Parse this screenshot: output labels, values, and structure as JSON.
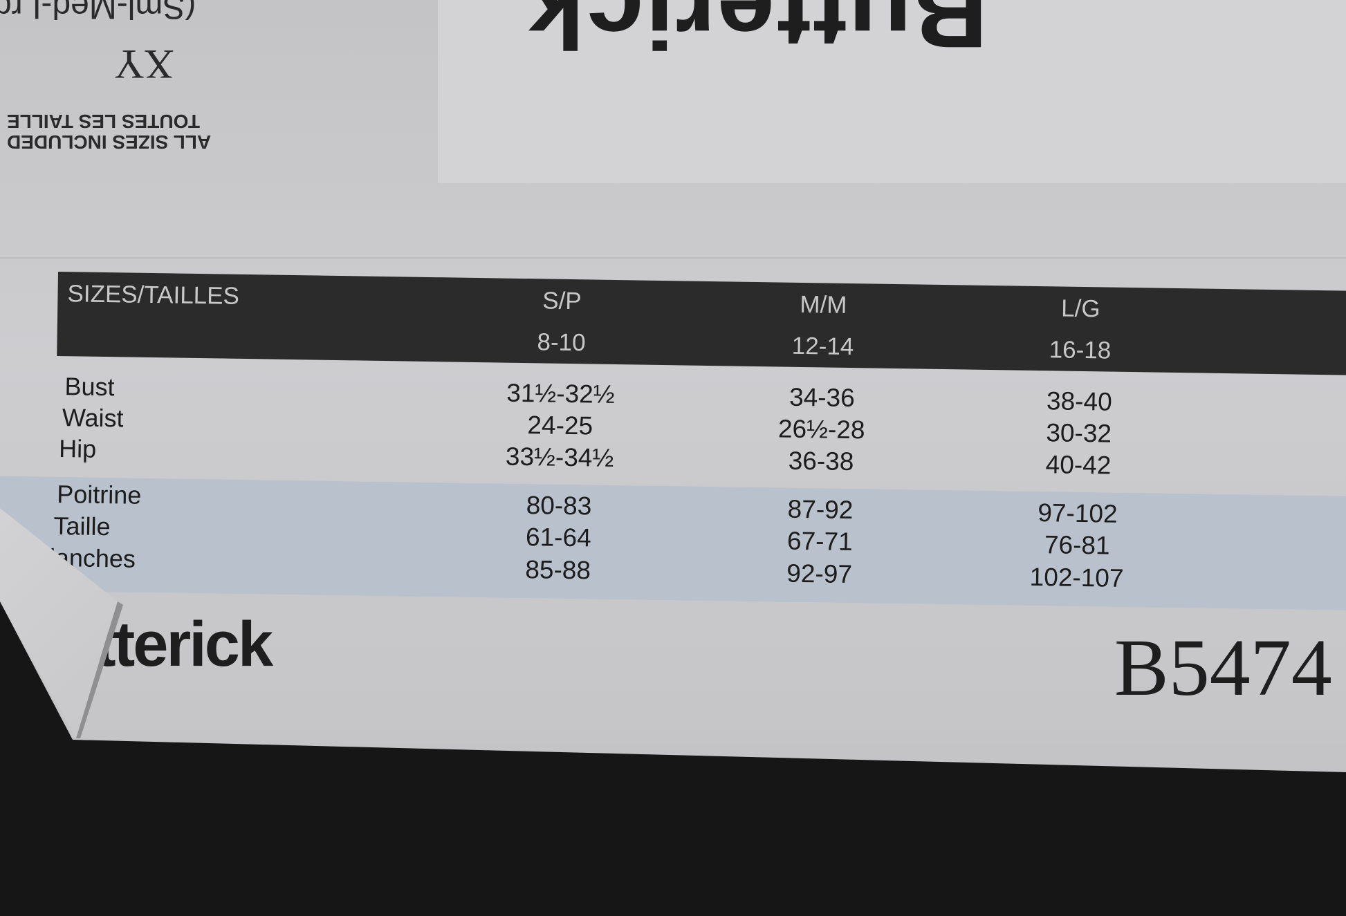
{
  "envelope_top": {
    "brand_upside_down": "Butterick",
    "sizes_code": "(Sml-Med-Lrg",
    "size_range": "XY",
    "all_sizes_en": "ALL SIZES INCLUDED",
    "all_sizes_fr": "TOUTES LES TAILLE"
  },
  "size_chart": {
    "header_label": "SIZES/TAILLES",
    "columns": [
      {
        "size": "S/P",
        "range": "8-10"
      },
      {
        "size": "M/M",
        "range": "12-14"
      },
      {
        "size": "L/G",
        "range": "16-18"
      }
    ],
    "imperial_rows": [
      {
        "label": "Bust",
        "values": [
          "31½-32½",
          "34-36",
          "38-40"
        ]
      },
      {
        "label": "Waist",
        "values": [
          "24-25",
          "26½-28",
          "30-32"
        ]
      },
      {
        "label": "Hip",
        "values": [
          "33½-34½",
          "36-38",
          "40-42"
        ]
      }
    ],
    "metric_rows": [
      {
        "label": "Poitrine",
        "values": [
          "80-83",
          "87-92",
          "97-102"
        ]
      },
      {
        "label": "Taille",
        "values": [
          "61-64",
          "67-71",
          "76-81"
        ]
      },
      {
        "label": "lanches",
        "values": [
          "85-88",
          "92-97",
          "102-107"
        ]
      }
    ],
    "colors": {
      "header_band": "#2b2b2b",
      "metric_band": "#b8c1cc",
      "paper": "#c9c9cb"
    }
  },
  "footer": {
    "brand_visible": "tterick",
    "pattern_number": "B5474"
  }
}
